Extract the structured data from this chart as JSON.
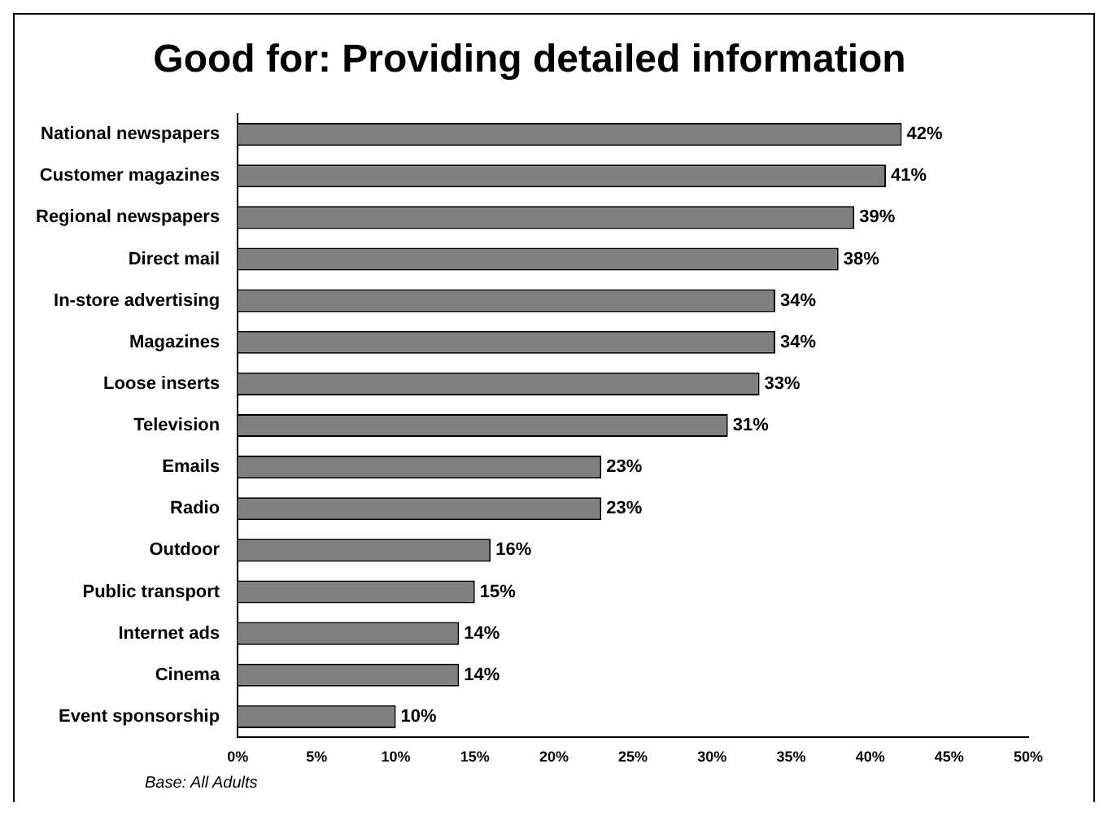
{
  "chart_data": {
    "type": "bar",
    "orientation": "horizontal",
    "title": "Good for: Providing detailed information",
    "categories": [
      "National newspapers",
      "Customer magazines",
      "Regional newspapers",
      "Direct mail",
      "In-store advertising",
      "Magazines",
      "Loose inserts",
      "Television",
      "Emails",
      "Radio",
      "Outdoor",
      "Public transport",
      "Internet ads",
      "Cinema",
      "Event sponsorship"
    ],
    "values": [
      42,
      41,
      39,
      38,
      34,
      34,
      33,
      31,
      23,
      23,
      16,
      15,
      14,
      14,
      10
    ],
    "value_labels": [
      "42%",
      "41%",
      "39%",
      "38%",
      "34%",
      "34%",
      "33%",
      "31%",
      "23%",
      "23%",
      "16%",
      "15%",
      "14%",
      "14%",
      "10%"
    ],
    "color": "#808080",
    "xlim": [
      0,
      50
    ],
    "xticks": [
      {
        "value": 0,
        "label": "0%"
      },
      {
        "value": 5,
        "label": "5%"
      },
      {
        "value": 10,
        "label": "10%"
      },
      {
        "value": 15,
        "label": "15%"
      },
      {
        "value": 20,
        "label": "20%"
      },
      {
        "value": 25,
        "label": "25%"
      },
      {
        "value": 30,
        "label": "30%"
      },
      {
        "value": 35,
        "label": "35%"
      },
      {
        "value": 40,
        "label": "40%"
      },
      {
        "value": 45,
        "label": "45%"
      },
      {
        "value": 50,
        "label": "50%"
      }
    ],
    "grid": false,
    "legend": false,
    "annotations": [
      "Base: All Adults"
    ]
  }
}
